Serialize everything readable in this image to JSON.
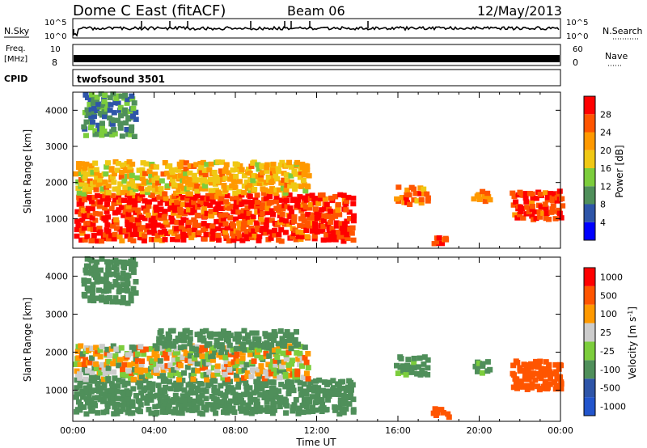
{
  "header": {
    "station": "Dome C East (fitACF)",
    "beam": "Beam 06",
    "date": "12/May/2013"
  },
  "nsky_panel": {
    "label_left": "N.Sky",
    "label_right": "N.Search",
    "tick_top_left": "10^5",
    "tick_bottom_left": "10^0",
    "tick_top_right": "10^5",
    "tick_bottom_right": "10^0"
  },
  "freq_panel": {
    "label_line1": "Freq.",
    "label_line2": "[MHz]",
    "tick_top_left": "10",
    "tick_bottom_left": "8",
    "label_right": "Nave",
    "tick_top_right": "60",
    "tick_bottom_right": "0"
  },
  "cpid_panel": {
    "label": "CPID",
    "value": "twofsound 3501"
  },
  "colors": {
    "power": [
      "#0000ff",
      "#2e55a8",
      "#4f8f5a",
      "#7ccd3c",
      "#f0c814",
      "#ff9900",
      "#ff5500",
      "#ff0000"
    ],
    "velocity": [
      "#ff0000",
      "#ff5500",
      "#ff9900",
      "#cccccc",
      "#7ccd3c",
      "#4f8f5a",
      "#2e55a8",
      "#2255cc"
    ]
  },
  "chart_data": [
    {
      "type": "heatmap",
      "title": "Power",
      "xlabel": "Time UT",
      "ylabel": "Slant Range [km]",
      "xlim": [
        "00:00",
        "00:00"
      ],
      "ylim": [
        180,
        4500
      ],
      "x_ticks": [
        "00:00",
        "04:00",
        "08:00",
        "12:00",
        "16:00",
        "20:00",
        "00:00"
      ],
      "y_ticks": [
        "1000",
        "2000",
        "3000",
        "4000"
      ],
      "colorbar": {
        "label": "Power [dB]",
        "ticks": [
          "4",
          "8",
          "12",
          "16",
          "20",
          "24",
          "28"
        ]
      },
      "regions": [
        {
          "t0": 0.0,
          "t1": 13.7,
          "r0": 300,
          "r1": 1600,
          "value": 28
        },
        {
          "t0": 0.0,
          "t1": 11.5,
          "r0": 1600,
          "r1": 2500,
          "value": 20
        },
        {
          "t0": 0.4,
          "t1": 3.0,
          "r0": 3200,
          "r1": 4400,
          "value": 10
        },
        {
          "t0": 15.8,
          "t1": 17.4,
          "r0": 1300,
          "r1": 1800,
          "value": 24
        },
        {
          "t0": 17.6,
          "t1": 18.4,
          "r0": 200,
          "r1": 450,
          "value": 28
        },
        {
          "t0": 19.6,
          "t1": 20.4,
          "r0": 1400,
          "r1": 1700,
          "value": 24
        },
        {
          "t0": 21.5,
          "t1": 24.0,
          "r0": 900,
          "r1": 1700,
          "value": 28
        }
      ]
    },
    {
      "type": "heatmap",
      "title": "Velocity",
      "xlabel": "Time UT",
      "ylabel": "Slant Range [km]",
      "xlim": [
        "00:00",
        "00:00"
      ],
      "ylim": [
        180,
        4500
      ],
      "x_ticks": [
        "00:00",
        "04:00",
        "08:00",
        "12:00",
        "16:00",
        "20:00",
        "00:00"
      ],
      "y_ticks": [
        "1000",
        "2000",
        "3000",
        "4000"
      ],
      "colorbar": {
        "label": "Velocity [m s^-1]",
        "ticks": [
          "1000",
          "500",
          "100",
          "25",
          "-25",
          "-100",
          "-500",
          "-1000"
        ]
      },
      "regions": [
        {
          "t0": 0.0,
          "t1": 13.7,
          "r0": 300,
          "r1": 1200,
          "value": -300
        },
        {
          "t0": 0.0,
          "t1": 11.5,
          "r0": 1200,
          "r1": 2100,
          "value": 0
        },
        {
          "t0": 4.0,
          "t1": 11.0,
          "r0": 2000,
          "r1": 2500,
          "value": -300
        },
        {
          "t0": 0.4,
          "t1": 3.0,
          "r0": 3200,
          "r1": 4400,
          "value": -300
        },
        {
          "t0": 15.8,
          "t1": 17.4,
          "r0": 1300,
          "r1": 1800,
          "value": -200
        },
        {
          "t0": 17.6,
          "t1": 18.4,
          "r0": 200,
          "r1": 450,
          "value": 300
        },
        {
          "t0": 19.6,
          "t1": 20.4,
          "r0": 1300,
          "r1": 1700,
          "value": -200
        },
        {
          "t0": 21.5,
          "t1": 24.0,
          "r0": 900,
          "r1": 1700,
          "value": 300
        }
      ]
    }
  ]
}
